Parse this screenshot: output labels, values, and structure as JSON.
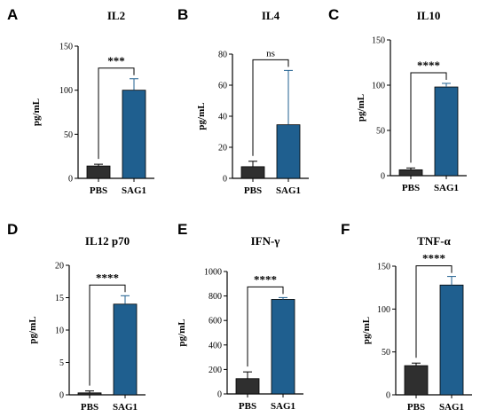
{
  "chart_data": [
    {
      "letter": "A",
      "type": "bar",
      "title": "IL2",
      "ylabel": "pg/mL",
      "categories": [
        "PBS",
        "SAG1"
      ],
      "values": [
        14,
        100
      ],
      "errors": [
        2,
        13
      ],
      "ylim": [
        0,
        150
      ],
      "yticks": [
        0,
        50,
        100,
        150
      ],
      "significance": "***",
      "bar_colors": [
        "#2f2f2f",
        "#1f5f8f"
      ]
    },
    {
      "letter": "B",
      "type": "bar",
      "title": "IL4",
      "ylabel": "pg/mL",
      "categories": [
        "PBS",
        "SAG1"
      ],
      "values": [
        7.5,
        34.5
      ],
      "errors": [
        3.5,
        35
      ],
      "ylim": [
        0,
        80
      ],
      "yticks": [
        0,
        20,
        40,
        60,
        80
      ],
      "significance": "ns",
      "bar_colors": [
        "#2f2f2f",
        "#1f5f8f"
      ]
    },
    {
      "letter": "C",
      "type": "bar",
      "title": "IL10",
      "ylabel": "pg/mL",
      "categories": [
        "PBS",
        "SAG1"
      ],
      "values": [
        6.5,
        98
      ],
      "errors": [
        2,
        4
      ],
      "ylim": [
        0,
        150
      ],
      "yticks": [
        0,
        50,
        100,
        150
      ],
      "significance": "****",
      "bar_colors": [
        "#2f2f2f",
        "#1f5f8f"
      ]
    },
    {
      "letter": "D",
      "type": "bar",
      "title": "IL12 p70",
      "ylabel": "pg/mL",
      "categories": [
        "PBS",
        "SAG1"
      ],
      "values": [
        0.3,
        14
      ],
      "errors": [
        0.3,
        1.3
      ],
      "ylim": [
        0,
        20
      ],
      "yticks": [
        0,
        5,
        10,
        15,
        20
      ],
      "significance": "****",
      "bar_colors": [
        "#2f2f2f",
        "#1f5f8f"
      ]
    },
    {
      "letter": "E",
      "type": "bar",
      "title": "IFN-γ",
      "ylabel": "pg/mL",
      "categories": [
        "PBS",
        "SAG1"
      ],
      "values": [
        125,
        772
      ],
      "errors": [
        55,
        15
      ],
      "ylim": [
        0,
        1000
      ],
      "yticks": [
        0,
        200,
        400,
        600,
        800,
        1000
      ],
      "significance": "****",
      "bar_colors": [
        "#2f2f2f",
        "#1f5f8f"
      ]
    },
    {
      "letter": "F",
      "type": "bar",
      "title": "TNF-α",
      "ylabel": "pg/mL",
      "categories": [
        "PBS",
        "SAG1"
      ],
      "values": [
        34,
        128
      ],
      "errors": [
        3,
        10
      ],
      "ylim": [
        0,
        150
      ],
      "yticks": [
        0,
        50,
        100,
        150
      ],
      "significance": "****",
      "bar_colors": [
        "#2f2f2f",
        "#1f5f8f"
      ]
    }
  ]
}
